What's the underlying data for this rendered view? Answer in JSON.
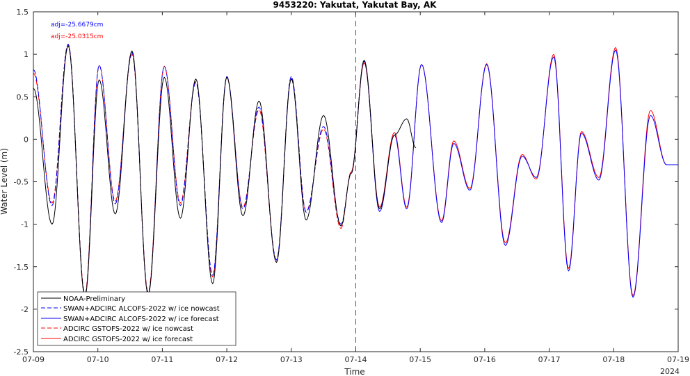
{
  "chart_data": {
    "type": "line",
    "title": "9453220: Yakutat, Yakutat Bay, AK",
    "xlabel": "Time",
    "ylabel": "Water Level (m)",
    "xlim": [
      0,
      10
    ],
    "ylim": [
      -2.5,
      1.5
    ],
    "x_ticks": [
      {
        "v": 0,
        "label": "07-09"
      },
      {
        "v": 1,
        "label": "07-10"
      },
      {
        "v": 2,
        "label": "07-11"
      },
      {
        "v": 3,
        "label": "07-12"
      },
      {
        "v": 4,
        "label": "07-13"
      },
      {
        "v": 5,
        "label": "07-14"
      },
      {
        "v": 6,
        "label": "07-15"
      },
      {
        "v": 7,
        "label": "07-16"
      },
      {
        "v": 8,
        "label": "07-17"
      },
      {
        "v": 9,
        "label": "07-18"
      },
      {
        "v": 10,
        "label": "07-19"
      }
    ],
    "x_secondary_label": "2024",
    "y_ticks": [
      {
        "v": 1.5,
        "label": "1.5"
      },
      {
        "v": 1,
        "label": "1"
      },
      {
        "v": 0.5,
        "label": "0.5"
      },
      {
        "v": 0,
        "label": "0"
      },
      {
        "v": -0.5,
        "label": "-0.5"
      },
      {
        "v": -1,
        "label": "-1"
      },
      {
        "v": -1.5,
        "label": "-1.5"
      },
      {
        "v": -2,
        "label": "-2"
      },
      {
        "v": -2.5,
        "label": "-2.5"
      }
    ],
    "vline_x": 5,
    "annotations": [
      {
        "text": "adj=-25.6679cm",
        "color": "#0000ff"
      },
      {
        "text": "adj=-25.0315cm",
        "color": "#ff0000"
      }
    ],
    "legend_position": "bottom-left",
    "series": [
      {
        "name": "NOAA-Preliminary",
        "color": "#000000",
        "dash": false,
        "key": "obs",
        "x": [
          0.0,
          0.29,
          0.54,
          0.8,
          1.02,
          1.27,
          1.53,
          1.78,
          2.03,
          2.28,
          2.52,
          2.78,
          3.0,
          3.25,
          3.5,
          3.77,
          4.0,
          4.23,
          4.5,
          4.77,
          4.93,
          5.13,
          5.37,
          5.6,
          5.79,
          5.93
        ],
        "y": [
          0.6,
          -1.0,
          1.1,
          -1.85,
          0.7,
          -0.88,
          1.04,
          -1.83,
          0.73,
          -0.93,
          0.71,
          -1.7,
          0.73,
          -0.9,
          0.45,
          -1.45,
          0.71,
          -0.95,
          0.28,
          -1.02,
          -0.4,
          0.93,
          -0.82,
          0.05,
          0.24,
          -0.1
        ]
      },
      {
        "name": "SWAN+ADCIRC ALCOFS-2022 w/ ice nowcast",
        "color": "#0000ff",
        "dash": true,
        "key": "alc_now",
        "x": [
          0.0,
          0.29,
          0.54,
          0.8,
          1.02,
          1.27,
          1.53,
          1.78,
          2.03,
          2.28,
          2.52,
          2.78,
          3.0,
          3.25,
          3.5,
          3.77,
          4.0,
          4.23,
          4.5,
          4.77,
          4.93
        ],
        "y": [
          0.82,
          -0.78,
          1.12,
          -1.85,
          0.87,
          -0.76,
          1.02,
          -1.83,
          0.86,
          -0.78,
          0.67,
          -1.6,
          0.74,
          -0.82,
          0.38,
          -1.42,
          0.74,
          -0.86,
          0.15,
          -1.0,
          -0.4
        ]
      },
      {
        "name": "SWAN+ADCIRC ALCOFS-2022 w/ ice forecast",
        "color": "#0000ff",
        "dash": false,
        "key": "alc_fc",
        "x": [
          4.93,
          5.13,
          5.37,
          5.6,
          5.79,
          6.02,
          6.33,
          6.52,
          6.77,
          7.03,
          7.32,
          7.58,
          7.8,
          8.07,
          8.3,
          8.5,
          8.77,
          9.03,
          9.3,
          9.57,
          9.82,
          10.0
        ],
        "y": [
          -0.4,
          0.92,
          -0.85,
          0.05,
          -0.82,
          0.88,
          -0.98,
          -0.05,
          -0.6,
          0.88,
          -1.25,
          -0.2,
          -0.45,
          0.97,
          -1.55,
          0.07,
          -0.48,
          1.05,
          -1.86,
          0.28,
          -0.3,
          -0.3
        ]
      },
      {
        "name": "ADCIRC GSTOFS-2022 w/ ice nowcast",
        "color": "#ff0000",
        "dash": true,
        "key": "gst_now",
        "x": [
          0.0,
          0.29,
          0.54,
          0.8,
          1.02,
          1.27,
          1.53,
          1.78,
          2.03,
          2.28,
          2.52,
          2.78,
          3.0,
          3.25,
          3.5,
          3.77,
          4.0,
          4.23,
          4.5,
          4.77,
          4.93
        ],
        "y": [
          0.78,
          -0.75,
          1.12,
          -1.82,
          0.87,
          -0.73,
          1.0,
          -1.8,
          0.86,
          -0.75,
          0.68,
          -1.62,
          0.73,
          -0.8,
          0.35,
          -1.44,
          0.72,
          -0.85,
          0.12,
          -1.05,
          -0.38
        ]
      },
      {
        "name": "ADCIRC GSTOFS-2022 w/ ice forecast",
        "color": "#ff0000",
        "dash": false,
        "key": "gst_fc",
        "x": [
          4.93,
          5.13,
          5.37,
          5.6,
          5.79,
          6.02,
          6.33,
          6.52,
          6.77,
          7.03,
          7.32,
          7.58,
          7.8,
          8.07,
          8.3,
          8.5,
          8.77,
          9.03,
          9.3,
          9.57,
          9.82,
          10.0
        ],
        "y": [
          -0.38,
          0.9,
          -0.8,
          0.08,
          -0.8,
          0.88,
          -0.96,
          -0.02,
          -0.58,
          0.89,
          -1.22,
          -0.18,
          -0.47,
          1.0,
          -1.52,
          0.09,
          -0.45,
          1.08,
          -1.84,
          0.34,
          -0.3,
          -0.3
        ]
      }
    ]
  },
  "colors": {
    "axis": "#262626",
    "observed": "#000000",
    "alcofs": "#0000ff",
    "gstofs": "#ff0000",
    "reference_line": "#555555"
  }
}
